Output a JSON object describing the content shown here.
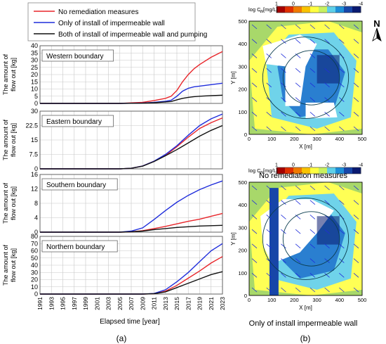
{
  "figure": {
    "panel_a_label": "(a)",
    "panel_b_label": "(b)",
    "north_label": "N"
  },
  "colors": {
    "no_remediation": "#e8262b",
    "wall_only": "#1f2ddb",
    "wall_and_pumping": "#111111",
    "grid": "#c8c8c8"
  },
  "chart_data": [
    {
      "type": "line",
      "title": "Western boundary",
      "ylabel": "The amount of flow out [kg]",
      "xlabel": "Elapsed time [year]",
      "x": [
        1991,
        2005,
        2009,
        2011,
        2013,
        2014,
        2015,
        2016,
        2017,
        2018,
        2019,
        2021,
        2023
      ],
      "xticks": [
        "1991",
        "1993",
        "1995",
        "1997",
        "1999",
        "2001",
        "2003",
        "2005",
        "2007",
        "2009",
        "2011",
        "2013",
        "2015",
        "2017",
        "2019",
        "2021",
        "2023"
      ],
      "ylim": [
        0,
        40
      ],
      "yticks": [
        "0",
        "5",
        "10",
        "15",
        "20",
        "25",
        "30",
        "35",
        "40"
      ],
      "legend": [
        "No remediation measures",
        "Only of install of impermeable wall",
        "Both of install of impermeable wall and pumping"
      ],
      "series": [
        {
          "name": "No remediation measures",
          "values": [
            0,
            0,
            0.8,
            2,
            3.5,
            5,
            9,
            15,
            20,
            24,
            27,
            32,
            36
          ]
        },
        {
          "name": "Only of install of impermeable wall",
          "values": [
            0,
            0,
            0.3,
            0.8,
            1.5,
            2.2,
            5,
            8.5,
            10.5,
            11.5,
            12,
            13,
            14
          ]
        },
        {
          "name": "Both of install of impermeable wall and pumping",
          "values": [
            0,
            0,
            0.2,
            0.5,
            1,
            1.3,
            2.5,
            3.5,
            4.2,
            4.7,
            5,
            5.4,
            5.7
          ]
        }
      ]
    },
    {
      "type": "line",
      "title": "Eastern boundary",
      "ylabel": "The amount of flow out [kg]",
      "xlabel": "Elapsed time [year]",
      "x": [
        1991,
        2005,
        2007,
        2009,
        2011,
        2013,
        2015,
        2017,
        2019,
        2021,
        2023
      ],
      "xticks": [
        "1991",
        "1993",
        "1995",
        "1997",
        "1999",
        "2001",
        "2003",
        "2005",
        "2007",
        "2009",
        "2011",
        "2013",
        "2015",
        "2017",
        "2019",
        "2021",
        "2023"
      ],
      "ylim": [
        0,
        30
      ],
      "yticks": [
        "0",
        "7.5",
        "15",
        "22.5",
        "30"
      ],
      "series": [
        {
          "name": "No remediation measures",
          "values": [
            0,
            0,
            0.3,
            1.5,
            4,
            7,
            11.5,
            16.5,
            21,
            24,
            26.5
          ]
        },
        {
          "name": "Only of install of impermeable wall",
          "values": [
            0,
            0,
            0.3,
            1.5,
            4,
            7.5,
            12,
            17.5,
            22.5,
            26,
            28.5
          ]
        },
        {
          "name": "Both of install of impermeable wall and pumping",
          "values": [
            0,
            0,
            0.3,
            1.4,
            3.8,
            6.8,
            10,
            13.5,
            17,
            20,
            22.5
          ]
        }
      ]
    },
    {
      "type": "line",
      "title": "Southern boundary",
      "ylabel": "The amount of flow out [kg]",
      "xlabel": "Elapsed time [year]",
      "x": [
        1991,
        2005,
        2007,
        2009,
        2011,
        2013,
        2015,
        2017,
        2019,
        2021,
        2023
      ],
      "xticks": [
        "1991",
        "1993",
        "1995",
        "1997",
        "1999",
        "2001",
        "2003",
        "2005",
        "2007",
        "2009",
        "2011",
        "2013",
        "2015",
        "2017",
        "2019",
        "2021",
        "2023"
      ],
      "ylim": [
        0,
        16
      ],
      "yticks": [
        "0",
        "4",
        "8",
        "12",
        "16"
      ],
      "series": [
        {
          "name": "No remediation measures",
          "values": [
            0,
            0,
            0.1,
            0.4,
            1,
            1.6,
            2.3,
            3,
            3.6,
            4.4,
            5.2
          ]
        },
        {
          "name": "Only of install of impermeable wall",
          "values": [
            0,
            0,
            0.3,
            1.2,
            3.5,
            6,
            8.3,
            10.2,
            11.8,
            13.1,
            14.2
          ]
        },
        {
          "name": "Both of install of impermeable wall and pumping",
          "values": [
            0,
            0,
            0.1,
            0.3,
            0.7,
            1,
            1.3,
            1.5,
            1.7,
            1.8,
            1.9
          ]
        }
      ]
    },
    {
      "type": "line",
      "title": "Northern boundary",
      "ylabel": "The amount of flow out [kg]",
      "xlabel": "Elapsed time [year]",
      "x": [
        1991,
        2009,
        2011,
        2013,
        2015,
        2017,
        2019,
        2021,
        2023
      ],
      "xticks": [
        "1991",
        "1993",
        "1995",
        "1997",
        "1999",
        "2001",
        "2003",
        "2005",
        "2007",
        "2009",
        "2011",
        "2013",
        "2015",
        "2017",
        "2019",
        "2021",
        "2023"
      ],
      "ylim": [
        0,
        80
      ],
      "yticks": [
        "0",
        "10",
        "20",
        "30",
        "40",
        "50",
        "60",
        "70",
        "80"
      ],
      "series": [
        {
          "name": "No remediation measures",
          "values": [
            0,
            0,
            0.5,
            4,
            12,
            22,
            32,
            43,
            52
          ]
        },
        {
          "name": "Only of install of impermeable wall",
          "values": [
            0,
            0,
            0.8,
            6,
            17,
            30,
            45,
            60,
            70
          ]
        },
        {
          "name": "Both of install of impermeable wall and pumping",
          "values": [
            0,
            0,
            0.5,
            3,
            9,
            15,
            21,
            27,
            31
          ]
        }
      ]
    }
  ],
  "maps": {
    "colorbar_label": "log C",
    "colorbar_sub": "W",
    "colorbar_unit": " [mg/L]",
    "colorbar_ticks": [
      "1",
      "0",
      "-1",
      "-2",
      "-3",
      "-4"
    ],
    "colorbar_colors": [
      "#a50000",
      "#e03000",
      "#f07a00",
      "#f9c300",
      "#ffff40",
      "#c8f060",
      "#5fd0e8",
      "#1d8fd8",
      "#1746a8",
      "#0a1a70"
    ],
    "xlabel": "X [m]",
    "ylabel": "Y [m]",
    "ticks": [
      "0",
      "100",
      "200",
      "300",
      "400",
      "500"
    ],
    "top_caption": "No remediation measures",
    "bottom_caption": "Only of install impermeable wall"
  }
}
